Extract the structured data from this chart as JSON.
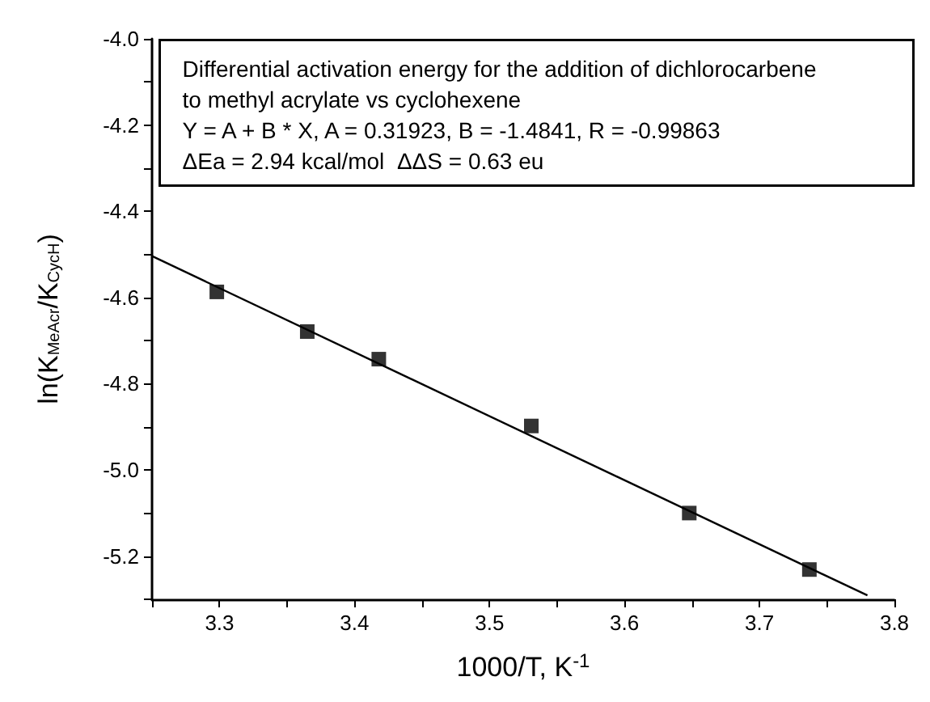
{
  "chart_data": {
    "type": "scatter",
    "xlabel": "1000/T, K$^{-1}$",
    "ylabel": "ln(K$_{MeAcr}$/K$_{CycH}$)",
    "annotations": [
      "Differential activation energy for the addition of dichlorocarbene",
      "to methyl acrylate vs cyclohexene",
      "Y = A + B * X, A = 0.31923, B = -1.4841, R = -0.99863",
      "ΔEa = 2.94 kcal/mol  ΔΔS = 0.63 eu"
    ],
    "series": [
      {
        "color": "#000000",
        "marker": "square",
        "x": [
          3.298,
          3.365,
          3.418,
          3.531,
          3.648,
          3.737
        ],
        "values": [
          -4.587,
          -4.679,
          -4.743,
          -4.898,
          -5.1,
          -5.231
        ]
      },
      {
        "type": "line",
        "color": "#000000",
        "marker": "none",
        "line_style": "solid",
        "x": [
          3.25,
          3.78
        ],
        "values": [
          -4.504,
          -5.291
        ]
      }
    ],
    "xlim": [
      3.25,
      3.8
    ],
    "xticks": [
      {
        "value": 3.25,
        "label": null
      },
      3.3,
      {
        "value": 3.35,
        "label": null
      },
      3.4,
      {
        "value": 3.45,
        "label": null
      },
      3.5,
      {
        "value": 3.55,
        "label": null
      },
      3.6,
      {
        "value": 3.65,
        "label": null
      },
      3.7,
      {
        "value": 3.75,
        "label": null
      },
      3.8
    ],
    "ylim": [
      -5.3,
      -4.0
    ],
    "yticks": [
      {
        "value": -5.3,
        "label": null
      },
      -5.2,
      {
        "value": -5.1,
        "label": null
      },
      {
        "value": -5.0,
        "label": "-5.0"
      },
      {
        "value": -4.9,
        "label": null
      },
      -4.8,
      {
        "value": -4.7,
        "label": null
      },
      -4.6,
      {
        "value": -4.5,
        "label": null
      },
      -4.4,
      {
        "value": -4.3,
        "label": null
      },
      -4.2,
      {
        "value": -4.1,
        "label": null
      },
      {
        "value": -4.0,
        "label": "-4.0"
      }
    ],
    "grid": false
  }
}
